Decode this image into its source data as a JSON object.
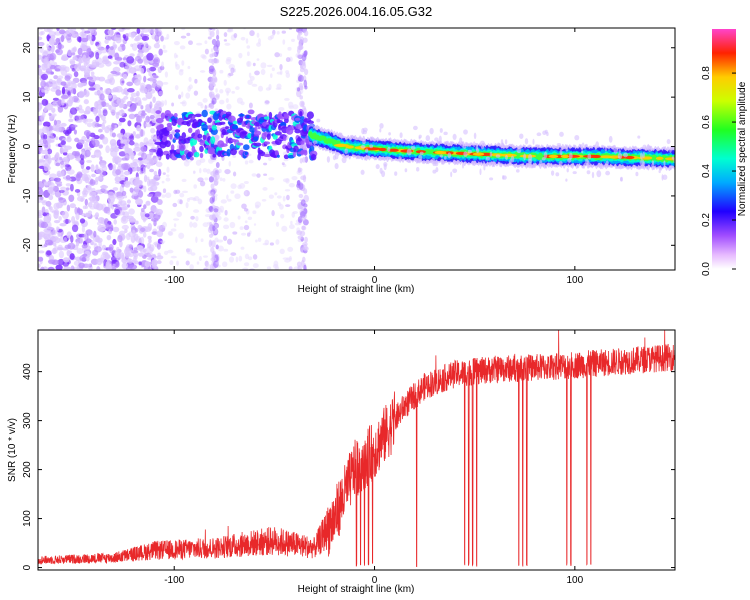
{
  "title": "S225.2026.004.16.05.G32",
  "chart_data": [
    {
      "type": "heatmap",
      "xlabel": "Height of straight line (km)",
      "ylabel": "Frequency (Hz)",
      "xlim": [
        -168,
        150
      ],
      "ylim": [
        -25,
        24
      ],
      "xticks": [
        -100,
        0,
        100
      ],
      "yticks": [
        20,
        10,
        0,
        -10,
        -20
      ],
      "xtick_labels": [
        "-100",
        "0",
        "100"
      ],
      "ytick_labels": [
        "20",
        "10",
        "0",
        "-10",
        "-20"
      ],
      "colorbar": {
        "label": "Normalized spectral amplitude",
        "range": [
          0.0,
          0.98
        ],
        "ticks": [
          0.0,
          0.2,
          0.4,
          0.6,
          0.8
        ],
        "tick_labels": [
          "0.0",
          "0.2",
          "0.4",
          "0.6",
          "0.8"
        ]
      },
      "ridge": [
        {
          "h": -108,
          "f": 2.5
        },
        {
          "h": -90,
          "f": 2.0
        },
        {
          "h": -70,
          "f": 3.0
        },
        {
          "h": -50,
          "f": 2.0
        },
        {
          "h": -33,
          "f": 2.5
        },
        {
          "h": -25,
          "f": 1.5
        },
        {
          "h": -15,
          "f": 0.0
        },
        {
          "h": 0,
          "f": -0.5
        },
        {
          "h": 20,
          "f": -1.0
        },
        {
          "h": 50,
          "f": -1.5
        },
        {
          "h": 80,
          "f": -2.0
        },
        {
          "h": 110,
          "f": -2.0
        },
        {
          "h": 150,
          "f": -2.5
        }
      ]
    },
    {
      "type": "line",
      "xlabel": "Height of straight line (km)",
      "ylabel": "SNR (10 * v/v)",
      "xlim": [
        -168,
        150
      ],
      "ylim": [
        -5,
        485
      ],
      "xticks": [
        -100,
        0,
        100
      ],
      "yticks": [
        0,
        100,
        200,
        300,
        400
      ],
      "xtick_labels": [
        "-100",
        "0",
        "100"
      ],
      "ytick_labels": [
        "0",
        "100",
        "200",
        "300",
        "400"
      ],
      "color": "#e8282a",
      "envelope": [
        {
          "h": -168,
          "snr": 15
        },
        {
          "h": -130,
          "snr": 20
        },
        {
          "h": -110,
          "snr": 35
        },
        {
          "h": -80,
          "snr": 40
        },
        {
          "h": -50,
          "snr": 55
        },
        {
          "h": -30,
          "snr": 40
        },
        {
          "h": -20,
          "snr": 100
        },
        {
          "h": -10,
          "snr": 200
        },
        {
          "h": 0,
          "snr": 240
        },
        {
          "h": 15,
          "snr": 330
        },
        {
          "h": 25,
          "snr": 370
        },
        {
          "h": 40,
          "snr": 395
        },
        {
          "h": 60,
          "snr": 405
        },
        {
          "h": 90,
          "snr": 410
        },
        {
          "h": 120,
          "snr": 420
        },
        {
          "h": 150,
          "snr": 430
        }
      ],
      "dropouts": [
        -9,
        -7,
        -5,
        -3,
        -1,
        21,
        45,
        47,
        49,
        51,
        72,
        74,
        76,
        96,
        98,
        106,
        108
      ]
    }
  ]
}
